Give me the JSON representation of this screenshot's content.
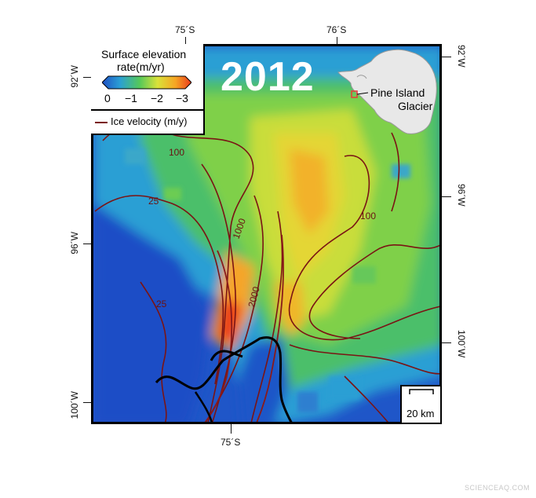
{
  "year_label": "2012",
  "legend": {
    "title_line1": "Surface elevation",
    "title_line2": "rate(m/yr)",
    "tick_labels": [
      "0",
      "−1",
      "−2",
      "−3"
    ],
    "velocity_label": "Ice velocity (m/y)",
    "colors": [
      "#1f4fc4",
      "#2a9fd4",
      "#55c85a",
      "#d9e23a",
      "#f6a623",
      "#ea3a1c"
    ],
    "velocity_color": "#7a1414"
  },
  "contours": {
    "labels": [
      "100",
      "25",
      "1000",
      "2000",
      "100",
      "25"
    ]
  },
  "coordinates": {
    "top": [
      "75´S",
      "76´S"
    ],
    "bottom": [
      "75´S"
    ],
    "left": [
      "92´W",
      "96´W",
      "100´W"
    ],
    "right": [
      "92´W",
      "96´W",
      "100´W"
    ]
  },
  "inset": {
    "place_line1": "Pine Island",
    "place_line2": "Glacier",
    "marker_color": "#e0443a"
  },
  "scale_bar": {
    "label": "20 km"
  },
  "watermark": "SCIENCEAQ.COM"
}
